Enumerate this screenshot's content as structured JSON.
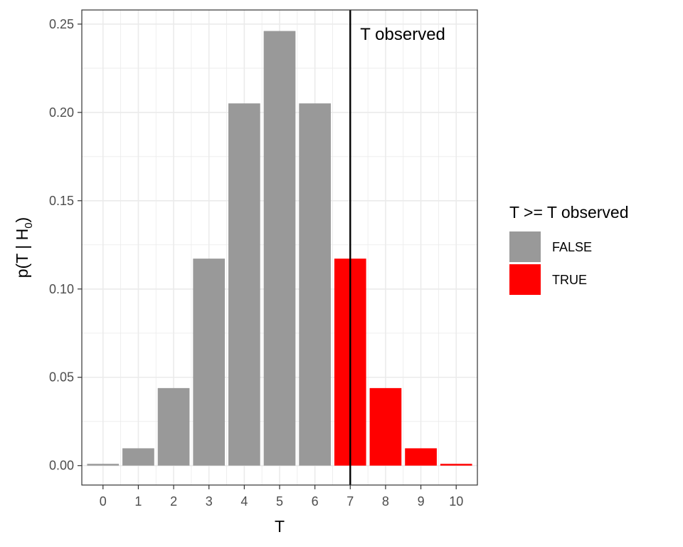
{
  "chart_data": {
    "type": "bar",
    "xlabel": "T",
    "ylabel": {
      "base": "p(T | H",
      "subscript": "0",
      "suffix": ")"
    },
    "categories": [
      "0",
      "1",
      "2",
      "3",
      "4",
      "5",
      "6",
      "7",
      "8",
      "9",
      "10"
    ],
    "values": [
      0.001,
      0.0098,
      0.0439,
      0.1172,
      0.2051,
      0.2461,
      0.2051,
      0.1172,
      0.0439,
      0.0098,
      0.001
    ],
    "group": [
      "FALSE",
      "FALSE",
      "FALSE",
      "FALSE",
      "FALSE",
      "FALSE",
      "FALSE",
      "TRUE",
      "TRUE",
      "TRUE",
      "TRUE"
    ],
    "ylim": [
      -0.011,
      0.258
    ],
    "yticks": [
      0.0,
      0.05,
      0.1,
      0.15,
      0.2,
      0.25
    ],
    "ytick_labels": [
      "0.00",
      "0.05",
      "0.10",
      "0.15",
      "0.20",
      "0.25"
    ],
    "vline": {
      "x": 7,
      "label": "T observed",
      "color": "#000000"
    },
    "legend": {
      "title": "T >= T observed",
      "position": "right",
      "entries": [
        {
          "label": "FALSE",
          "color": "#999999"
        },
        {
          "label": "TRUE",
          "color": "#ff0000"
        }
      ]
    },
    "grid": true
  }
}
